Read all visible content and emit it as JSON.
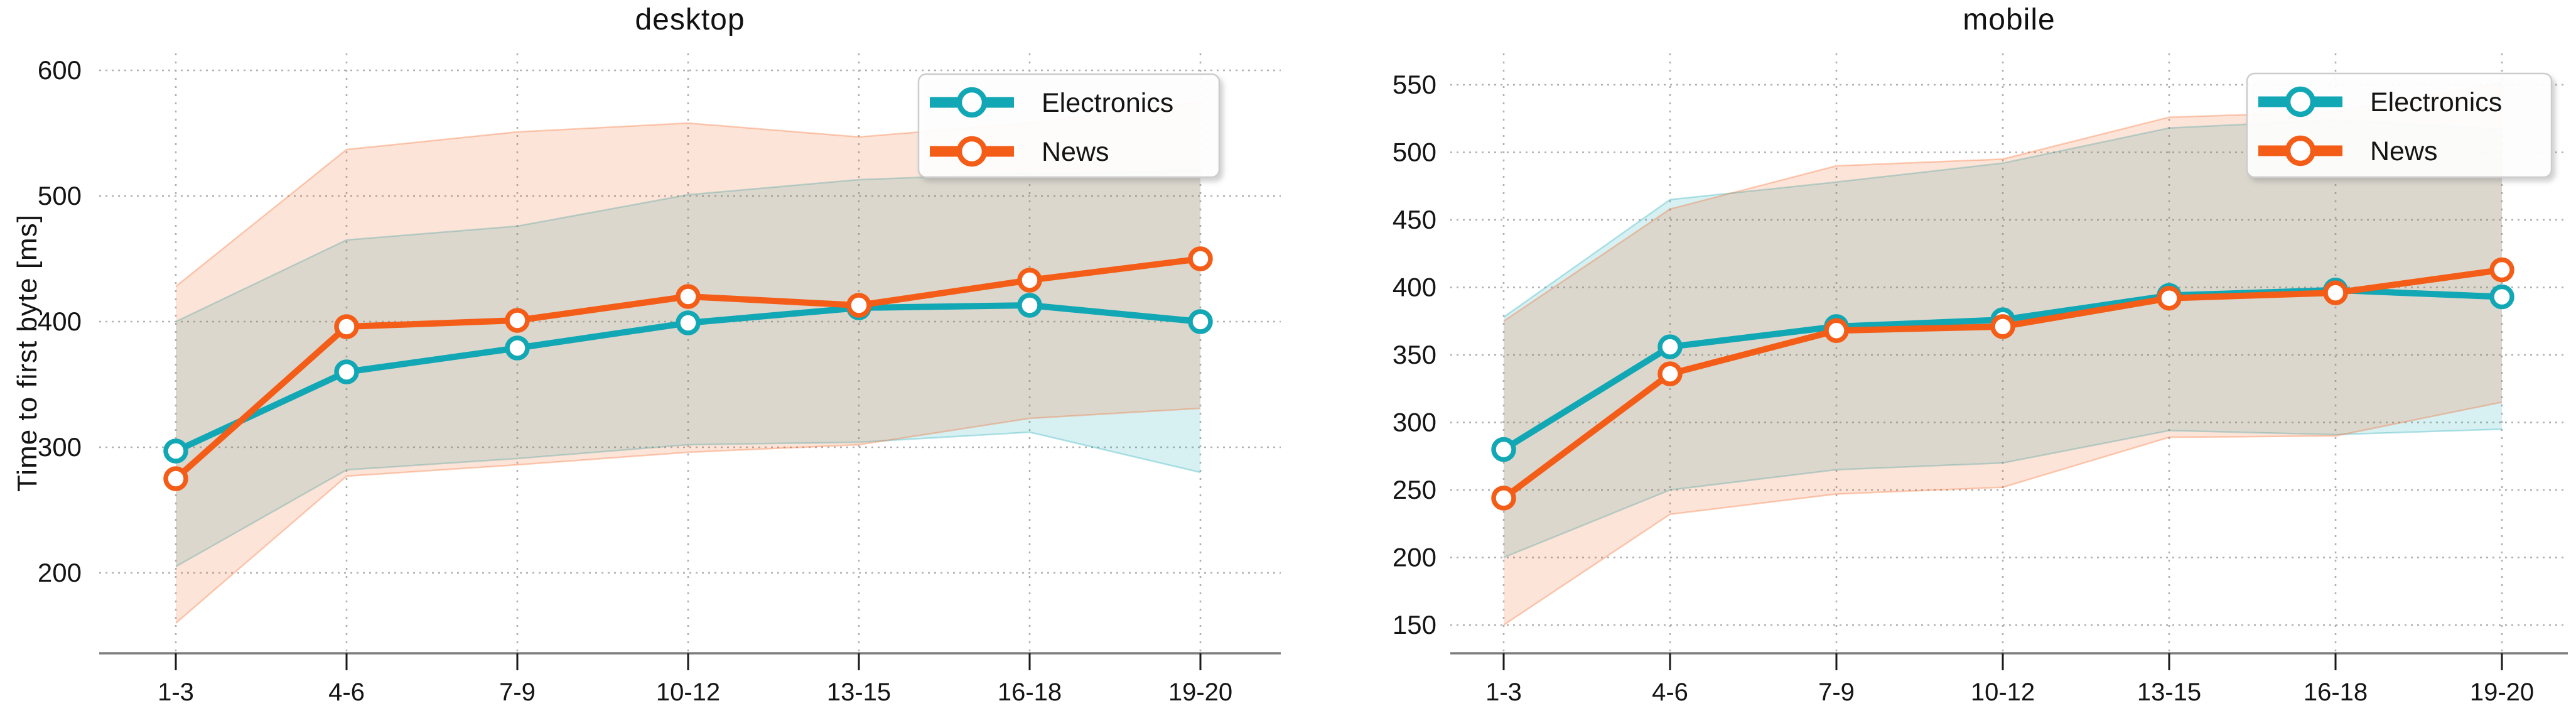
{
  "figure": {
    "background": "#ffffff",
    "ylabel": "Time to first byte [ms]"
  },
  "chart_data": {
    "type": "line",
    "categories": [
      "1-3",
      "4-6",
      "7-9",
      "10-12",
      "13-15",
      "16-18",
      "19-20"
    ],
    "xlabel": "",
    "grid": true,
    "legend_position": "upper right",
    "band_note": "each series has a shaded confidence band (upper/lower)",
    "charts": [
      {
        "title": "desktop",
        "ylabel": "Time to first byte [ms]",
        "yticks": [
          600,
          500,
          400,
          300,
          200
        ],
        "ylim": [
          136,
          613
        ],
        "series": [
          {
            "name": "Electronics",
            "color": "#12A7B4",
            "values": [
              297,
              360,
              379,
              399,
              411,
              413,
              400
            ],
            "band_upper": [
              400,
              465,
              476,
              501,
              513,
              518,
              520
            ],
            "band_lower": [
              205,
              282,
              291,
              302,
              304,
              312,
              280
            ]
          },
          {
            "name": "News",
            "color": "#F45D17",
            "values": [
              275,
              396,
              401,
              420,
              413,
              433,
              450
            ],
            "band_upper": [
              428,
              537,
              551,
              558,
              547,
              558,
              575
            ],
            "band_lower": [
              160,
              277,
              286,
              296,
              302,
              323,
              331
            ]
          }
        ]
      },
      {
        "title": "mobile",
        "ylabel": "",
        "yticks": [
          550,
          500,
          450,
          400,
          350,
          300,
          250,
          200,
          150
        ],
        "ylim": [
          129,
          573
        ],
        "series": [
          {
            "name": "Electronics",
            "color": "#12A7B4",
            "values": [
              280,
              356,
              371,
              376,
              394,
              398,
              393
            ],
            "band_upper": [
              378,
              465,
              478,
              492,
              518,
              524,
              517
            ],
            "band_lower": [
              200,
              250,
              265,
              270,
              294,
              291,
              295
            ]
          },
          {
            "name": "News",
            "color": "#F45D17",
            "values": [
              244,
              336,
              368,
              371,
              392,
              396,
              413
            ],
            "band_upper": [
              375,
              458,
              490,
              495,
              526,
              530,
              551
            ],
            "band_lower": [
              150,
              232,
              247,
              252,
              289,
              290,
              315
            ]
          }
        ]
      }
    ],
    "style": {
      "grid_color": "#b0b0b0",
      "spine_color": "#7d7d7d",
      "tick_color": "#1a1a1a",
      "text_color": "#141414",
      "band_opacity": 0.17,
      "legend_bg": "#ffffff",
      "legend_border": "#cccccc"
    }
  }
}
